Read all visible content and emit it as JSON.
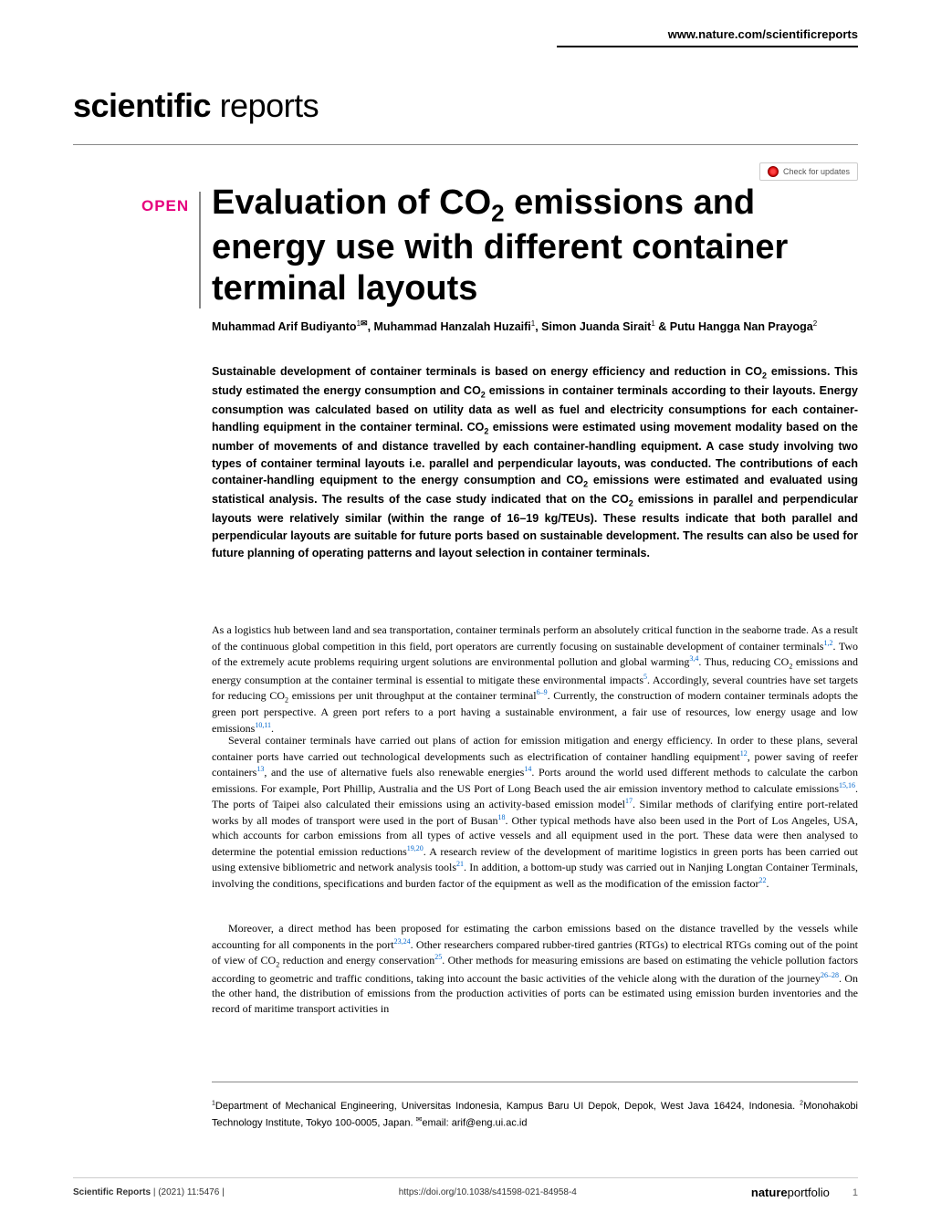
{
  "header": {
    "url": "www.nature.com/scientificreports",
    "journal_bold": "scientific",
    "journal_light": " reports",
    "check_updates": "Check for updates"
  },
  "badge": {
    "open": "OPEN"
  },
  "title": "Evaluation of CO<sub>2</sub> emissions and energy use with different container terminal layouts",
  "authors": "Muhammad Arif Budiyanto<sup>1</sup><span class=\"corr-icon\">✉</span>, Muhammad Hanzalah Huzaifi<sup>1</sup>, Simon Juanda Sirait<sup>1</sup> & Putu Hangga Nan Prayoga<sup>2</sup>",
  "abstract": "Sustainable development of container terminals is based on energy efficiency and reduction in CO<sub>2</sub> emissions. This study estimated the energy consumption and CO<sub>2</sub> emissions in container terminals according to their layouts. Energy consumption was calculated based on utility data as well as fuel and electricity consumptions for each container-handling equipment in the container terminal. CO<sub>2</sub> emissions were estimated using movement modality based on the number of movements of and distance travelled by each container-handling equipment. A case study involving two types of container terminal layouts i.e. parallel and perpendicular layouts, was conducted. The contributions of each container-handling equipment to the energy consumption and CO<sub>2</sub> emissions were estimated and evaluated using statistical analysis. The results of the case study indicated that on the CO<sub>2</sub> emissions in parallel and perpendicular layouts were relatively similar (within the range of 16–19 kg/TEUs). These results indicate that both parallel and perpendicular layouts are suitable for future ports based on sustainable development. The results can also be used for future planning of operating patterns and layout selection in container terminals.",
  "para1": "As a logistics hub between land and sea transportation, container terminals perform an absolutely critical function in the seaborne trade. As a result of the continuous global competition in this field, port operators are currently focusing on sustainable development of container terminals<sup>1,2</sup>. Two of the extremely acute problems requiring urgent solutions are environmental pollution and global warming<sup>3,4</sup>. Thus, reducing CO<sub>2</sub> emissions and energy consumption at the container terminal is essential to mitigate these environmental impacts<sup>5</sup>. Accordingly, several countries have set targets for reducing CO<sub>2</sub> emissions per unit throughput at the container terminal<sup>6–9</sup>. Currently, the construction of modern container terminals adopts the green port perspective. A green port refers to a port having a sustainable environment, a fair use of resources, low energy usage and low emissions<sup>10,11</sup>.",
  "para2": "Several container terminals have carried out plans of action for emission mitigation and energy efficiency. In order to these plans, several container ports have carried out technological developments such as electrification of container handling equipment<sup>12</sup>, power saving of reefer containers<sup>13</sup>, and the use of alternative fuels also renewable energies<sup>14</sup>. Ports around the world used different methods to calculate the carbon emissions. For example, Port Phillip, Australia and the US Port of Long Beach used the air emission inventory method to calculate emissions<sup>15,16</sup>. The ports of Taipei also calculated their emissions using an activity-based emission model<sup>17</sup>. Similar methods of clarifying entire port-related works by all modes of transport were used in the port of Busan<sup>18</sup>. Other typical methods have also been used in the Port of Los Angeles, USA, which accounts for carbon emissions from all types of active vessels and all equipment used in the port. These data were then analysed to determine the potential emission reductions<sup>19,20</sup>. A research review of the development of maritime logistics in green ports has been carried out using extensive bibliometric and network analysis tools<sup>21</sup>. In addition, a bottom-up study was carried out in Nanjing Longtan Container Terminals, involving the conditions, specifications and burden factor of the equipment as well as the modification of the emission factor<sup>22</sup>.",
  "para3": "Moreover, a direct method has been proposed for estimating the carbon emissions based on the distance travelled by the vessels while accounting for all components in the port<sup>23,24</sup>. Other researchers compared rubber-tired gantries (RTGs) to electrical RTGs coming out of the point of view of CO<sub>2</sub> reduction and energy conservation<sup>25</sup>. Other methods for measuring emissions are based on estimating the vehicle pollution factors according to geometric and traffic conditions, taking into account the basic activities of the vehicle along with the duration of the journey<sup>26–28</sup>. On the other hand, the distribution of emissions from the production activities of ports can be estimated using emission burden inventories and the record of maritime transport activities in",
  "affiliations": "<sup>1</sup>Department of Mechanical Engineering, Universitas Indonesia, Kampus Baru UI Depok, Depok, West Java 16424, Indonesia. <sup>2</sup>Monohakobi Technology Institute, Tokyo 100-0005, Japan. <span class=\"affil-corr\">✉</span>email: arif@eng.ui.ac.id",
  "footer": {
    "journal": "Scientific Reports",
    "citation": "(2021) 11:5476",
    "divider": " | ",
    "doi": "https://doi.org/10.1038/s41598-021-84958-4",
    "logo_bold": "nature",
    "logo_light": "portfolio",
    "page": "1"
  },
  "colors": {
    "accent": "#e6007e",
    "link": "#0066cc",
    "text": "#000000",
    "divider": "#888888",
    "background": "#ffffff"
  }
}
